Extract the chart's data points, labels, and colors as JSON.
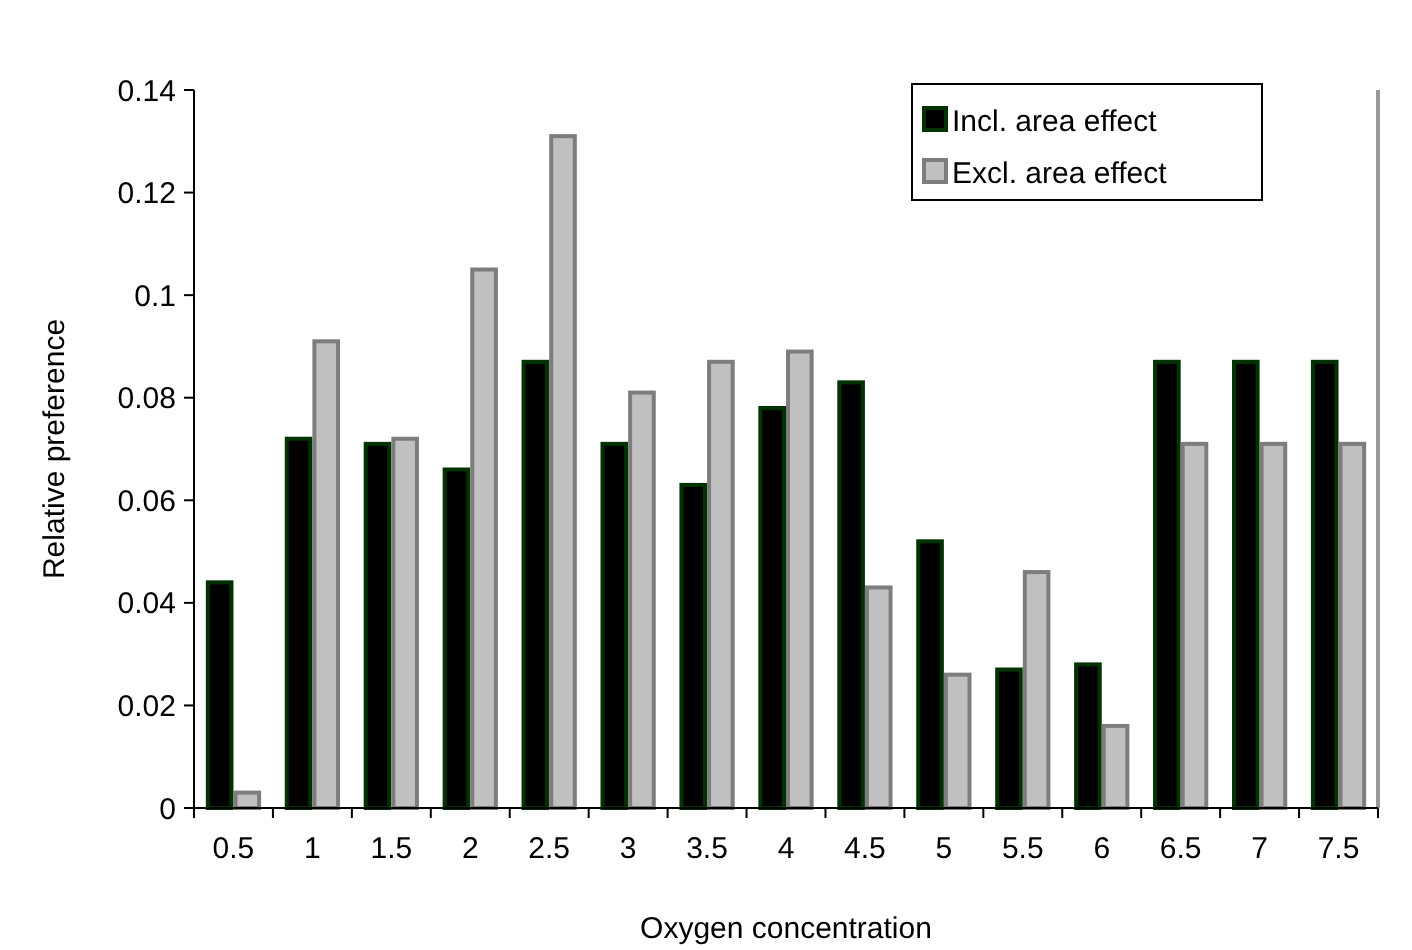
{
  "chart_data": {
    "type": "bar",
    "xlabel": "Oxygen concentration",
    "ylabel": "Relative preference",
    "categories": [
      "0.5",
      "1",
      "1.5",
      "2",
      "2.5",
      "3",
      "3.5",
      "4",
      "4.5",
      "5",
      "5.5",
      "6",
      "6.5",
      "7",
      "7.5"
    ],
    "series": [
      {
        "name": "Incl. area effect",
        "color": "#000000",
        "values": [
          0.044,
          0.072,
          0.071,
          0.066,
          0.087,
          0.071,
          0.063,
          0.078,
          0.083,
          0.052,
          0.027,
          0.028,
          0.087,
          0.087,
          0.087
        ]
      },
      {
        "name": "Excl. area effect",
        "color": "#c0c0c0",
        "values": [
          0.003,
          0.091,
          0.072,
          0.105,
          0.131,
          0.081,
          0.087,
          0.089,
          0.043,
          0.026,
          0.046,
          0.016,
          0.071,
          0.071,
          0.071
        ]
      }
    ],
    "ylim": [
      0,
      0.14
    ],
    "yticks": [
      0,
      0.02,
      0.04,
      0.06,
      0.08,
      {
        "value": 0.1,
        "label": "0.1"
      },
      0.12,
      0.14
    ],
    "grid": false,
    "legend": "top right"
  }
}
